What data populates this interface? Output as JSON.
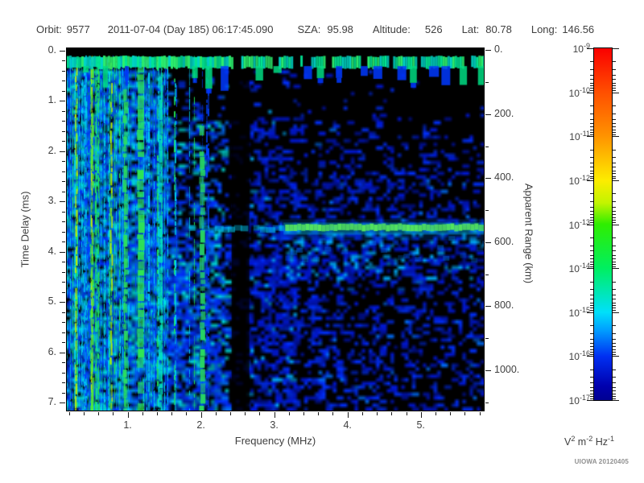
{
  "header": {
    "orbit_label": "Orbit:",
    "orbit_value": "9577",
    "datetime": "2011-07-04 (Day 185) 06:17:45.090",
    "sza_label": "SZA:",
    "sza_value": "95.98",
    "altitude_label": "Altitude:",
    "altitude_value": "526",
    "lat_label": "Lat:",
    "lat_value": "80.78",
    "long_label": "Long:",
    "long_value": "146.56"
  },
  "credit": "UIOWA 20120405",
  "chart_data": {
    "type": "heatmap",
    "subtype": "radar-sounder-ionogram-spectrogram",
    "x_axis": {
      "label": "Frequency (MHz)",
      "min": 0.17,
      "max": 5.86,
      "major_ticks": [
        1,
        2,
        3,
        4,
        5
      ],
      "major_tick_labels": [
        "1.",
        "2.",
        "3.",
        "4.",
        "5."
      ],
      "minor_tick_step": 0.2
    },
    "y_axis_left": {
      "label": "Time Delay (ms)",
      "min": -0.04,
      "max": 7.16,
      "major_ticks": [
        0,
        1,
        2,
        3,
        4,
        5,
        6,
        7
      ],
      "major_tick_labels": [
        "0.",
        "1.",
        "2.",
        "3.",
        "4.",
        "5.",
        "6.",
        "7."
      ],
      "minor_tick_step": 0.2
    },
    "y_axis_right": {
      "label": "Apparent Range (km)",
      "min": -6,
      "max": 1126,
      "major_ticks": [
        0,
        200,
        400,
        600,
        800,
        1000
      ],
      "major_tick_labels": [
        "0.",
        "200.",
        "400.",
        "600.",
        "800.",
        "1000."
      ],
      "minor_tick_step": 100
    },
    "colorbar": {
      "tick_base": "10",
      "exponents": [
        -9,
        -10,
        -11,
        -12,
        -13,
        -14,
        -15,
        -16,
        -17
      ],
      "unit_parts": [
        [
          "V",
          "2"
        ],
        [
          "m",
          "-2"
        ],
        [
          "Hz",
          "-1"
        ]
      ],
      "gradient_stops": [
        {
          "pos": 0,
          "color": "#fa0000"
        },
        {
          "pos": 12.5,
          "color": "#ff4f00"
        },
        {
          "pos": 25,
          "color": "#ff9300"
        },
        {
          "pos": 37.5,
          "color": "#fdec00"
        },
        {
          "pos": 44,
          "color": "#c2f400"
        },
        {
          "pos": 50,
          "color": "#2fee00"
        },
        {
          "pos": 62.5,
          "color": "#00ef60"
        },
        {
          "pos": 75,
          "color": "#00e0fa"
        },
        {
          "pos": 80,
          "color": "#00a0ff"
        },
        {
          "pos": 87.5,
          "color": "#0030f2"
        },
        {
          "pos": 96,
          "color": "#0000ae"
        },
        {
          "pos": 100,
          "color": "#000092"
        }
      ]
    },
    "features": {
      "background_color": "#000000",
      "top_band": {
        "time_ms_start": 0.12,
        "time_ms_end": 0.33,
        "teeth_max_ms": 0.85,
        "colors": [
          "#00e896",
          "#2cf06e",
          "#00d8c8"
        ],
        "tooth_colors": [
          "#0038ff",
          "#00dc82"
        ]
      },
      "surface_echo": {
        "time_delay_ms": 3.52,
        "apparent_range_km": 550,
        "freq_start_mhz": 3.15,
        "freq_end_mhz": 5.86,
        "faint_segment_freq_start_mhz": 1.75,
        "core_color": "#55e85c",
        "glow_color": "#00c8f0"
      },
      "absorption_lane": {
        "freq_start_mhz": 2.42,
        "freq_end_mhz": 2.66,
        "opacity": 0.8
      },
      "ionospheric_stripes": {
        "freq_end_mhz": 1.5,
        "fade_end_mhz": 2.3,
        "colors": {
          "yellow": "#d2f000",
          "green": "#22e455",
          "cyan": "#00d8f0",
          "blue": "#0040ff"
        }
      },
      "bright_streaks": [
        {
          "freq_mhz": 0.3,
          "color": "#c8f000",
          "width": 2
        },
        {
          "freq_mhz": 0.52,
          "color": "#50ee30",
          "width": 3
        },
        {
          "freq_mhz": 0.78,
          "color": "#b8f000",
          "width": 2
        },
        {
          "freq_mhz": 0.97,
          "color": "#2ce060",
          "width": 5
        },
        {
          "freq_mhz": 1.18,
          "color": "#30e850",
          "width": 8
        },
        {
          "freq_mhz": 1.45,
          "color": "#00e0c0",
          "width": 4
        },
        {
          "freq_mhz": 2.02,
          "color": "#28d860",
          "width": 6,
          "time_start_ms": 1.5
        }
      ],
      "speckle": {
        "seed": 42,
        "colors": [
          "#000090",
          "#0018d8",
          "#0030ff",
          "#0070ff",
          "#00b0ff",
          "#00e0e0",
          "#00f090"
        ]
      }
    }
  }
}
